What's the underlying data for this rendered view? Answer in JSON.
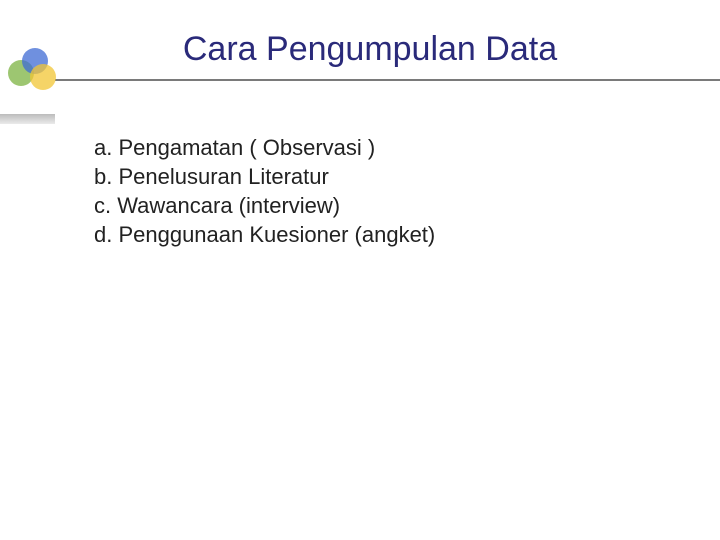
{
  "title": {
    "text": "Cara Pengumpulan Data",
    "color": "#2a2a7a",
    "fontsize": 34
  },
  "logo": {
    "green": "#7cb342",
    "blue": "#3f6bd4",
    "yellow": "#f2c534",
    "shadow": "#bcbcbc"
  },
  "divider_color": "#7a7a7a",
  "items": [
    {
      "text": "a. Pengamatan ( Observasi )"
    },
    {
      "text": "b. Penelusuran Literatur"
    },
    {
      "text": "c. Wawancara (interview)"
    },
    {
      "text": "d. Penggunaan Kuesioner (angket)"
    }
  ],
  "item_color": "#222222",
  "item_fontsize": 22
}
